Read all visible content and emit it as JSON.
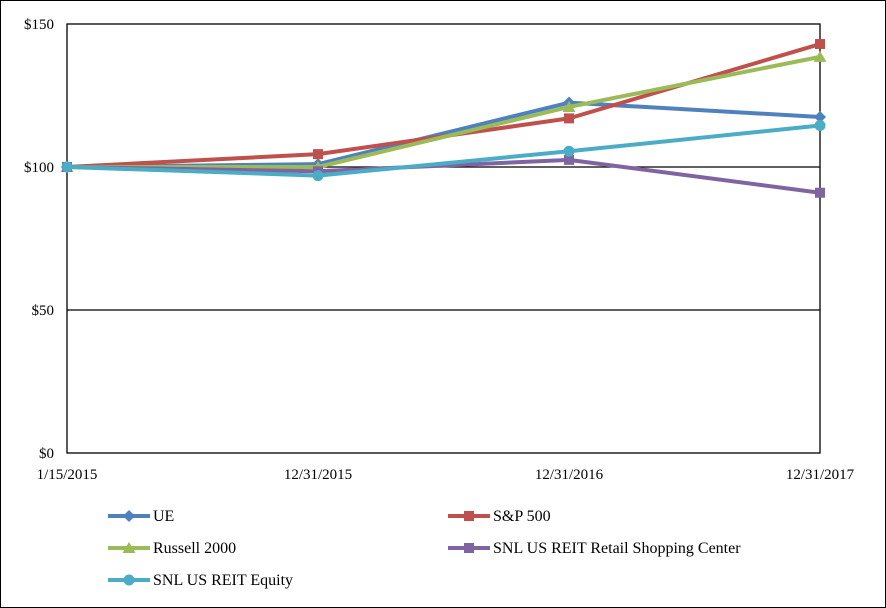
{
  "chart_data": {
    "type": "line",
    "title": "",
    "xlabel": "",
    "ylabel": "",
    "categories": [
      "1/15/2015",
      "12/31/2015",
      "12/31/2016",
      "12/31/2017"
    ],
    "ylim": [
      0,
      150
    ],
    "yticks": [
      0,
      50,
      100,
      150
    ],
    "ytick_labels": [
      "$0",
      "$50",
      "$100",
      "$150"
    ],
    "grid": "horizontal",
    "legend_position": "bottom",
    "series": [
      {
        "name": "UE",
        "values": [
          100,
          101,
          122.5,
          117.5
        ],
        "color": "#4F81BD",
        "marker": "diamond"
      },
      {
        "name": "S&P 500",
        "values": [
          100,
          104.5,
          117,
          143
        ],
        "color": "#C0504D",
        "marker": "square"
      },
      {
        "name": "Russell 2000",
        "values": [
          100,
          100,
          121,
          138.5
        ],
        "color": "#9BBB59",
        "marker": "triangle"
      },
      {
        "name": "SNL US REIT Retail Shopping Center",
        "values": [
          100,
          98.5,
          102.5,
          91
        ],
        "color": "#8064A2",
        "marker": "square"
      },
      {
        "name": "SNL US REIT Equity",
        "values": [
          100,
          97,
          105.5,
          114.5
        ],
        "color": "#4BACC6",
        "marker": "circle"
      }
    ]
  }
}
